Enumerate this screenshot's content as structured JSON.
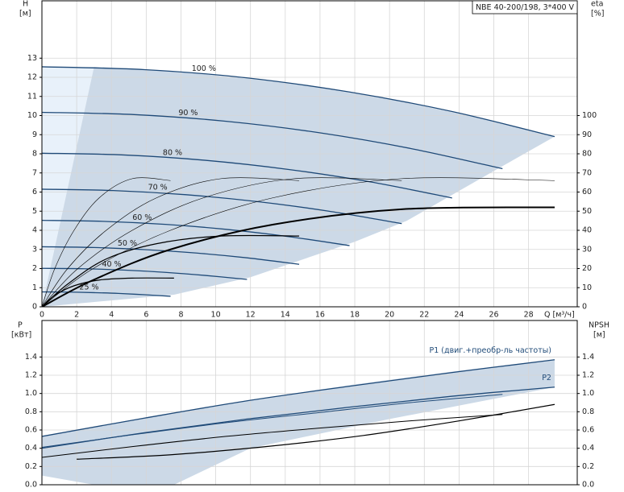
{
  "chart_data": [
    {
      "type": "line",
      "title": "NBE 40-200/198, 3*400 V",
      "y_label": "H",
      "y_unit": "[м]",
      "y2_label": "eta",
      "y2_unit": "[%]",
      "x_label": "Q [м³/ч]",
      "xlim": [
        0,
        30.8
      ],
      "xticks": [
        0,
        2,
        4,
        6,
        8,
        10,
        12,
        14,
        16,
        18,
        20,
        22,
        24,
        26,
        28
      ],
      "ylim": [
        0,
        16
      ],
      "yticks": [
        0,
        1,
        2,
        3,
        4,
        5,
        6,
        7,
        8,
        9,
        10,
        11,
        12,
        13
      ],
      "y2lim": [
        0,
        160
      ],
      "y2ticks": [
        0,
        10,
        20,
        30,
        40,
        50,
        60,
        70,
        80,
        90,
        100
      ],
      "grid": true,
      "areas": [
        {
          "color": "#e8f1fa",
          "x": [
            0,
            3,
            0
          ],
          "values": [
            12.5,
            12.55,
            0
          ]
        },
        {
          "color": "#ccd9e7",
          "x": [
            3,
            8,
            14,
            20,
            26,
            29.5,
            26,
            21,
            18,
            12,
            7.6,
            0
          ],
          "values": [
            12.55,
            12.28,
            11.73,
            10.87,
            9.71,
            8.9,
            7.1,
            4.5,
            3.4,
            1.55,
            0.63,
            0
          ]
        }
      ],
      "series": [
        {
          "name": "100 %",
          "color": "#1f4a78",
          "x": [
            0,
            5.9,
            11.8,
            17.7,
            23.6,
            29.5
          ],
          "values": [
            12.55,
            12.4,
            11.97,
            11.23,
            10.21,
            8.9
          ]
        },
        {
          "name": "90 %",
          "color": "#1f4a78",
          "x": [
            0,
            5.3,
            10.6,
            15.9,
            21.2,
            26.5
          ],
          "values": [
            10.17,
            10.05,
            9.7,
            9.11,
            8.28,
            7.22
          ]
        },
        {
          "name": "80 %",
          "color": "#1f4a78",
          "x": [
            0,
            4.7,
            9.4,
            14.2,
            18.9,
            23.6
          ],
          "values": [
            8.03,
            7.94,
            7.66,
            7.18,
            6.53,
            5.69
          ]
        },
        {
          "name": "70 %",
          "color": "#1f4a78",
          "x": [
            0,
            4.1,
            8.3,
            12.4,
            16.5,
            20.7
          ],
          "values": [
            6.15,
            6.08,
            5.86,
            5.5,
            5.0,
            4.35
          ]
        },
        {
          "name": "60 %",
          "color": "#1f4a78",
          "x": [
            0,
            3.5,
            7.1,
            10.6,
            14.2,
            17.7
          ],
          "values": [
            4.52,
            4.47,
            4.31,
            4.05,
            3.67,
            3.2
          ]
        },
        {
          "name": "50 %",
          "color": "#1f4a78",
          "x": [
            0,
            3,
            5.9,
            8.9,
            11.8,
            14.8
          ],
          "values": [
            3.14,
            3.1,
            2.99,
            2.81,
            2.56,
            2.22
          ]
        },
        {
          "name": "40 %",
          "color": "#1f4a78",
          "x": [
            0,
            2.4,
            4.7,
            7.1,
            9.4,
            11.8
          ],
          "values": [
            2.01,
            1.99,
            1.92,
            1.8,
            1.64,
            1.43
          ]
        },
        {
          "name": "25 %",
          "color": "#1f4a78",
          "x": [
            0,
            1.5,
            3,
            4.4,
            5.9,
            7.4
          ],
          "values": [
            0.78,
            0.77,
            0.74,
            0.7,
            0.63,
            0.55
          ]
        },
        {
          "axis": "y2",
          "color": "#000000",
          "width": 0.6,
          "x": [
            0,
            2.95,
            7.4,
            13.3,
            20.7,
            29.5
          ],
          "values": [
            0,
            20,
            40,
            57,
            67,
            66
          ]
        },
        {
          "axis": "y2",
          "color": "#000000",
          "width": 0.6,
          "x": [
            0,
            2.07,
            5.2,
            9.3,
            14.5,
            20.7
          ],
          "values": [
            0,
            20,
            40,
            57,
            67,
            66
          ]
        },
        {
          "axis": "y2",
          "color": "#000000",
          "width": 0.6,
          "x": [
            0,
            1.48,
            3.7,
            6.6,
            10.3,
            14.8
          ],
          "values": [
            0,
            20,
            40,
            57,
            67,
            66
          ]
        },
        {
          "axis": "y2",
          "color": "#000000",
          "width": 0.6,
          "x": [
            0,
            0.74,
            1.85,
            3.3,
            5.2,
            7.4
          ],
          "values": [
            0,
            20,
            40,
            57,
            67,
            66
          ]
        },
        {
          "axis": "y2",
          "color": "#000000",
          "width": 2,
          "x": [
            0,
            2.95,
            7.4,
            13.3,
            20.7,
            29.5
          ],
          "values": [
            0,
            14,
            30,
            43,
            51,
            52
          ]
        },
        {
          "axis": "y2",
          "color": "#000000",
          "width": 1.2,
          "x": [
            0,
            1.5,
            3.7,
            6.6,
            10.3,
            14.8
          ],
          "values": [
            0,
            12,
            25,
            33,
            37,
            37
          ]
        },
        {
          "axis": "y2",
          "color": "#000000",
          "width": 1.2,
          "x": [
            0,
            0.74,
            1.85,
            3.3,
            5.2,
            7.6
          ],
          "values": [
            0,
            6,
            11,
            14,
            15,
            15
          ]
        }
      ]
    },
    {
      "type": "line",
      "y_label": "P",
      "y_unit": "[кВт]",
      "y2_label": "NPSH",
      "y2_unit": "[м]",
      "xlim": [
        0,
        30.8
      ],
      "xticks": [
        0,
        2,
        4,
        6,
        8,
        10,
        12,
        14,
        16,
        18,
        20,
        22,
        24,
        26,
        28
      ],
      "ylim": [
        0,
        1.8
      ],
      "yticks": [
        {
          "value": 0,
          "label": "0.0"
        },
        0.2,
        0.4,
        0.6,
        0.8,
        {
          "value": 1,
          "label": "1.0"
        },
        1.2,
        1.4
      ],
      "y2lim": [
        0,
        1.8
      ],
      "y2ticks": [
        {
          "value": 0,
          "label": "0.0"
        },
        0.2,
        0.4,
        0.6,
        0.8,
        {
          "value": 1,
          "label": "1.0"
        },
        1.2,
        1.4
      ],
      "grid": true,
      "areas": [
        {
          "color": "#ccd9e7",
          "x": [
            0,
            6,
            12,
            18,
            24,
            29.5,
            29.5,
            20,
            12,
            7.6,
            3,
            0
          ],
          "values": [
            0.53,
            0.74,
            0.93,
            1.1,
            1.25,
            1.37,
            1.07,
            0.72,
            0.4,
            0,
            0,
            0.1
          ]
        }
      ],
      "series": [
        {
          "name": "P1 (двиг.+преобр-ль частоты)",
          "color": "#1f4a78",
          "x": [
            0,
            5.9,
            11.8,
            17.7,
            23.6,
            29.5
          ],
          "values": [
            0.53,
            0.73,
            0.92,
            1.08,
            1.23,
            1.37
          ]
        },
        {
          "name": "P2",
          "color": "#1f4a78",
          "x": [
            0,
            5.9,
            11.8,
            17.7,
            23.6,
            29.5
          ],
          "values": [
            0.4,
            0.57,
            0.72,
            0.85,
            0.97,
            1.07
          ]
        },
        {
          "color": "#1f4a78",
          "width": 1,
          "x": [
            0,
            5.3,
            10.6,
            15.9,
            21.2,
            26.5
          ],
          "values": [
            0.41,
            0.55,
            0.68,
            0.79,
            0.9,
            0.99
          ]
        },
        {
          "color": "#000000",
          "width": 1,
          "x": [
            0,
            5.3,
            10.6,
            15.9,
            21.2,
            26.5
          ],
          "values": [
            0.3,
            0.42,
            0.53,
            0.62,
            0.7,
            0.77
          ]
        },
        {
          "axis": "y2",
          "color": "#000000",
          "width": 1.2,
          "x": [
            2,
            7.5,
            13,
            18.5,
            24,
            29.5
          ],
          "values": [
            0.28,
            0.33,
            0.42,
            0.54,
            0.7,
            0.88
          ]
        }
      ]
    }
  ]
}
